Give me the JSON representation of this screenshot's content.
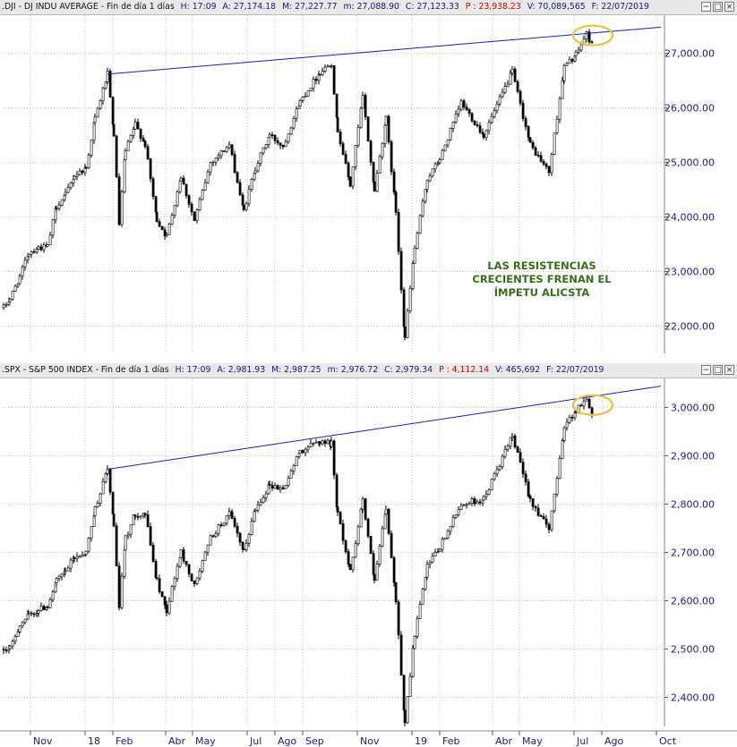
{
  "panels": [
    {
      "id": "dji",
      "header": {
        "symbol": ".DJI",
        "name": "DJ INDU AVERAGE",
        "period": "Fin de día 1 días",
        "h": "H: 17:09",
        "a": "A: 27,174.18",
        "m": "M: 27,227.77",
        "mlow": "m: 27,088.90",
        "c": "C: 27,123.33",
        "p": "P : 23,938.23",
        "v": "V: 70,089,565",
        "f": "F: 22/07/2019"
      },
      "y_ticks": [
        "27,000.00",
        "26,000.00",
        "25,000.00",
        "24,000.00",
        "23,000.00",
        "22,000.00"
      ],
      "annotation": [
        "LAS RESISTENCIAS",
        "CRECIENTES FRENAN EL",
        "ÍMPETU ALICSTA"
      ]
    },
    {
      "id": "spx",
      "header": {
        "symbol": ".SPX",
        "name": "S&P 500 INDEX",
        "period": "Fin de día 1 días",
        "h": "H: 17:09",
        "a": "A: 2,981.93",
        "m": "M: 2,987.25",
        "mlow": "m: 2,976.72",
        "c": "C: 2,979.34",
        "p": "P : 4,112.14",
        "v": "V: 465,692",
        "f": "F: 22/07/2019"
      },
      "y_ticks": [
        "3,000.00",
        "2,900.00",
        "2,800.00",
        "2,700.00",
        "2,600.00",
        "2,500.00",
        "2,400.00"
      ]
    }
  ],
  "x_ticks": [
    "Nov",
    "18",
    "Feb",
    "Abr",
    "May",
    "Jul",
    "Ago",
    "Sep",
    "Nov",
    "19",
    "Feb",
    "Abr",
    "May",
    "Jul",
    "Ago",
    "Oct"
  ],
  "window_buttons": [
    "−",
    "□",
    "×"
  ],
  "colors": {
    "header_bg": "#e9e9e9",
    "axis_text": "#1c1c80",
    "header_value_blue": "#17177e",
    "header_value_red": "#d20000",
    "trendline": "#1a1acc",
    "circle": "#f0c040",
    "annotation": "#3d6b1f",
    "candles": "#000000",
    "grid": "#c8c8c8"
  },
  "chart_data": [
    {
      "type": "candlestick",
      "series_name": "DJ INDU AVERAGE",
      "x_unit": "date",
      "ylim": [
        21500,
        27700
      ],
      "x_range": [
        "2017-10-01",
        "2019-10-10"
      ],
      "grid": true,
      "close_path": [
        [
          "2017-10-02",
          22340
        ],
        [
          "2017-10-09",
          22500
        ],
        [
          "2017-10-20",
          22900
        ],
        [
          "2017-10-30",
          23350
        ],
        [
          "2017-11-10",
          23440
        ],
        [
          "2017-11-20",
          23450
        ],
        [
          "2017-11-30",
          24200
        ],
        [
          "2017-12-10",
          24400
        ],
        [
          "2017-12-20",
          24760
        ],
        [
          "2018-01-02",
          24900
        ],
        [
          "2018-01-12",
          25800
        ],
        [
          "2018-01-26",
          26620
        ],
        [
          "2018-02-02",
          25520
        ],
        [
          "2018-02-08",
          23860
        ],
        [
          "2018-02-15",
          25200
        ],
        [
          "2018-02-26",
          25700
        ],
        [
          "2018-03-09",
          25330
        ],
        [
          "2018-03-22",
          23950
        ],
        [
          "2018-04-02",
          23640
        ],
        [
          "2018-04-18",
          24750
        ],
        [
          "2018-05-03",
          23930
        ],
        [
          "2018-05-21",
          25000
        ],
        [
          "2018-06-11",
          25320
        ],
        [
          "2018-06-27",
          24110
        ],
        [
          "2018-07-10",
          24900
        ],
        [
          "2018-07-26",
          25500
        ],
        [
          "2018-08-10",
          25300
        ],
        [
          "2018-08-29",
          26120
        ],
        [
          "2018-09-20",
          26650
        ],
        [
          "2018-10-03",
          26830
        ],
        [
          "2018-10-10",
          25600
        ],
        [
          "2018-10-24",
          24580
        ],
        [
          "2018-11-07",
          26200
        ],
        [
          "2018-11-20",
          24500
        ],
        [
          "2018-12-03",
          25800
        ],
        [
          "2018-12-14",
          24100
        ],
        [
          "2018-12-24",
          21790
        ],
        [
          "2019-01-04",
          23430
        ],
        [
          "2019-01-18",
          24700
        ],
        [
          "2019-02-01",
          25060
        ],
        [
          "2019-02-25",
          26100
        ],
        [
          "2019-03-22",
          25500
        ],
        [
          "2019-04-23",
          26660
        ],
        [
          "2019-05-13",
          25320
        ],
        [
          "2019-06-03",
          24820
        ],
        [
          "2019-06-20",
          26750
        ],
        [
          "2019-07-03",
          26970
        ],
        [
          "2019-07-15",
          27360
        ],
        [
          "2019-07-22",
          27120
        ]
      ],
      "trendline": {
        "from": [
          "2018-01-26",
          26620
        ],
        "to": [
          "2019-10-06",
          27480
        ]
      },
      "highlight_circle": {
        "date": "2019-07-20",
        "value": 27330
      }
    },
    {
      "type": "candlestick",
      "series_name": "S&P 500 INDEX",
      "x_unit": "date",
      "ylim": [
        2340,
        3060
      ],
      "x_range": [
        "2017-10-01",
        "2019-10-10"
      ],
      "grid": true,
      "close_path": [
        [
          "2017-10-02",
          2500
        ],
        [
          "2017-10-09",
          2500
        ],
        [
          "2017-10-20",
          2550
        ],
        [
          "2017-10-30",
          2570
        ],
        [
          "2017-11-10",
          2580
        ],
        [
          "2017-11-20",
          2590
        ],
        [
          "2017-11-30",
          2640
        ],
        [
          "2017-12-10",
          2660
        ],
        [
          "2017-12-20",
          2690
        ],
        [
          "2018-01-02",
          2700
        ],
        [
          "2018-01-12",
          2790
        ],
        [
          "2018-01-26",
          2872
        ],
        [
          "2018-02-02",
          2760
        ],
        [
          "2018-02-08",
          2580
        ],
        [
          "2018-02-15",
          2730
        ],
        [
          "2018-02-26",
          2780
        ],
        [
          "2018-03-09",
          2780
        ],
        [
          "2018-03-22",
          2640
        ],
        [
          "2018-04-02",
          2580
        ],
        [
          "2018-04-18",
          2700
        ],
        [
          "2018-05-03",
          2630
        ],
        [
          "2018-05-21",
          2730
        ],
        [
          "2018-06-11",
          2780
        ],
        [
          "2018-06-27",
          2700
        ],
        [
          "2018-07-10",
          2790
        ],
        [
          "2018-07-26",
          2840
        ],
        [
          "2018-08-10",
          2830
        ],
        [
          "2018-08-29",
          2910
        ],
        [
          "2018-09-20",
          2930
        ],
        [
          "2018-10-03",
          2925
        ],
        [
          "2018-10-10",
          2780
        ],
        [
          "2018-10-24",
          2660
        ],
        [
          "2018-11-07",
          2810
        ],
        [
          "2018-11-20",
          2640
        ],
        [
          "2018-12-03",
          2790
        ],
        [
          "2018-12-14",
          2600
        ],
        [
          "2018-12-24",
          2351
        ],
        [
          "2019-01-04",
          2530
        ],
        [
          "2019-01-18",
          2670
        ],
        [
          "2019-02-01",
          2710
        ],
        [
          "2019-02-25",
          2800
        ],
        [
          "2019-03-22",
          2810
        ],
        [
          "2019-04-23",
          2940
        ],
        [
          "2019-05-13",
          2810
        ],
        [
          "2019-06-03",
          2745
        ],
        [
          "2019-06-20",
          2960
        ],
        [
          "2019-07-03",
          2995
        ],
        [
          "2019-07-15",
          3015
        ],
        [
          "2019-07-22",
          2985
        ]
      ],
      "trendline": {
        "from": [
          "2018-01-26",
          2872
        ],
        "to": [
          "2019-10-06",
          3044
        ]
      },
      "highlight_circle": {
        "date": "2019-07-20",
        "value": 3005
      }
    }
  ]
}
